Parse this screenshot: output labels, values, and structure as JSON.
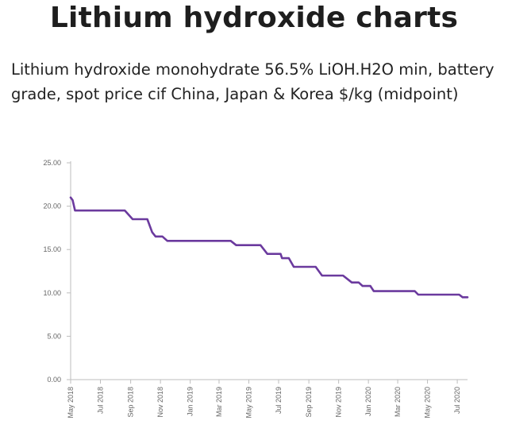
{
  "page": {
    "title": "Lithium hydroxide charts",
    "subtitle": "Lithium hydroxide monohydrate 56.5% LiOH.H2O min, battery grade, spot price cif China, Japan & Korea $/kg (midpoint)"
  },
  "colors": {
    "series": "#6b3a9e",
    "axis": "#bdbdbd",
    "tick_text": "#666666"
  },
  "chart_data": {
    "type": "line",
    "ylim": [
      0,
      25
    ],
    "y_ticks": [
      "0.00",
      "5.00",
      "10.00",
      "15.00",
      "20.00",
      "25.00"
    ],
    "x_range": [
      "2018-05-01",
      "2020-07-22"
    ],
    "x_ticks": [
      {
        "date": "2018-05-01",
        "label": "May 2018"
      },
      {
        "date": "2018-07-01",
        "label": "Jul 2018"
      },
      {
        "date": "2018-09-01",
        "label": "Sep 2018"
      },
      {
        "date": "2018-11-01",
        "label": "Nov 2018"
      },
      {
        "date": "2019-01-01",
        "label": "Jan 2019"
      },
      {
        "date": "2019-03-01",
        "label": "Mar 2019"
      },
      {
        "date": "2019-05-01",
        "label": "May 2019"
      },
      {
        "date": "2019-07-01",
        "label": "Jul 2019"
      },
      {
        "date": "2019-09-01",
        "label": "Sep 2019"
      },
      {
        "date": "2019-11-01",
        "label": "Nov 2019"
      },
      {
        "date": "2020-01-01",
        "label": "Jan 2020"
      },
      {
        "date": "2020-03-01",
        "label": "Mar 2020"
      },
      {
        "date": "2020-05-01",
        "label": "May 2020"
      },
      {
        "date": "2020-07-01",
        "label": "Jul 2020"
      }
    ],
    "series": [
      {
        "points": [
          [
            "2018-05-01",
            21.0
          ],
          [
            "2018-05-05",
            20.7
          ],
          [
            "2018-05-10",
            19.5
          ],
          [
            "2018-08-20",
            19.5
          ],
          [
            "2018-09-05",
            18.5
          ],
          [
            "2018-10-05",
            18.5
          ],
          [
            "2018-10-15",
            17.0
          ],
          [
            "2018-10-22",
            16.5
          ],
          [
            "2018-11-05",
            16.5
          ],
          [
            "2018-11-15",
            16.0
          ],
          [
            "2019-02-25",
            16.0
          ],
          [
            "2019-03-25",
            16.0
          ],
          [
            "2019-04-05",
            15.5
          ],
          [
            "2019-05-25",
            15.5
          ],
          [
            "2019-06-08",
            14.5
          ],
          [
            "2019-07-05",
            14.5
          ],
          [
            "2019-07-08",
            14.0
          ],
          [
            "2019-07-22",
            14.0
          ],
          [
            "2019-08-01",
            13.0
          ],
          [
            "2019-09-15",
            13.0
          ],
          [
            "2019-09-28",
            12.0
          ],
          [
            "2019-11-10",
            12.0
          ],
          [
            "2019-11-28",
            11.2
          ],
          [
            "2019-12-12",
            11.2
          ],
          [
            "2019-12-20",
            10.8
          ],
          [
            "2020-01-05",
            10.8
          ],
          [
            "2020-01-12",
            10.2
          ],
          [
            "2020-04-05",
            10.2
          ],
          [
            "2020-04-12",
            9.8
          ],
          [
            "2020-07-05",
            9.8
          ],
          [
            "2020-07-12",
            9.5
          ],
          [
            "2020-07-22",
            9.5
          ]
        ]
      }
    ]
  }
}
